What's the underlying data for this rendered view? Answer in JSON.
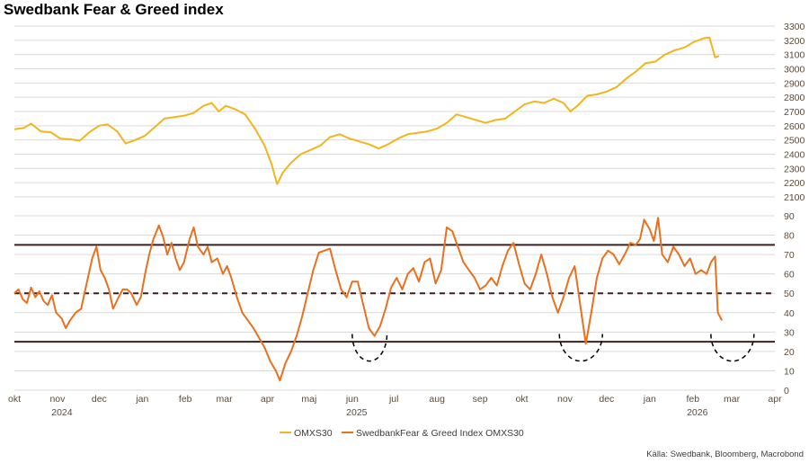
{
  "title": "Swedbank Fear & Greed index",
  "source": "Källa: Swedbank, Bloomberg, Macrobond",
  "colors": {
    "omx": "#f2b51c",
    "fg": "#e8701e",
    "ref": "#3d1f1f",
    "grid": "#d9d9d9",
    "arc": "#000000"
  },
  "chart_data": {
    "type": "line",
    "x_axis": {
      "type": "time",
      "month_labels": [
        "okt",
        "nov",
        "dec",
        "jan",
        "feb",
        "mar",
        "apr",
        "maj",
        "jun",
        "jul",
        "aug",
        "sep",
        "okt",
        "nov",
        "dec",
        "jan",
        "feb",
        "mar",
        "apr"
      ],
      "year_labels": [
        "2024",
        "2025",
        "2026"
      ]
    },
    "upper_panel": {
      "series": "OMXS30",
      "ylim": [
        2100,
        3300
      ],
      "ticks": [
        2100,
        2200,
        2300,
        2400,
        2500,
        2600,
        2700,
        2800,
        2900,
        3000,
        3100,
        3200,
        3300
      ]
    },
    "lower_panel": {
      "series": "SwedbankFear & Greed Index OMXS30",
      "ylim": [
        0,
        90
      ],
      "ticks": [
        0,
        10,
        20,
        30,
        40,
        50,
        60,
        70,
        80,
        90
      ],
      "reference_lines": [
        {
          "value": 75,
          "style": "solid"
        },
        {
          "value": 50,
          "style": "dashed"
        },
        {
          "value": 25,
          "style": "solid"
        }
      ]
    },
    "series": [
      {
        "name": "OMXS30",
        "points": [
          [
            "2024-10-01",
            2575
          ],
          [
            "2024-10-08",
            2585
          ],
          [
            "2024-10-13",
            2615
          ],
          [
            "2024-10-20",
            2560
          ],
          [
            "2024-10-27",
            2555
          ],
          [
            "2024-11-03",
            2510
          ],
          [
            "2024-11-10",
            2505
          ],
          [
            "2024-11-17",
            2495
          ],
          [
            "2024-11-24",
            2555
          ],
          [
            "2024-12-01",
            2600
          ],
          [
            "2024-12-07",
            2610
          ],
          [
            "2024-12-14",
            2560
          ],
          [
            "2024-12-20",
            2475
          ],
          [
            "2024-12-27",
            2500
          ],
          [
            "2025-01-03",
            2530
          ],
          [
            "2025-01-10",
            2590
          ],
          [
            "2025-01-17",
            2650
          ],
          [
            "2025-01-24",
            2660
          ],
          [
            "2025-01-31",
            2670
          ],
          [
            "2025-02-07",
            2690
          ],
          [
            "2025-02-14",
            2740
          ],
          [
            "2025-02-20",
            2760
          ],
          [
            "2025-02-25",
            2700
          ],
          [
            "2025-03-02",
            2740
          ],
          [
            "2025-03-09",
            2715
          ],
          [
            "2025-03-16",
            2680
          ],
          [
            "2025-03-23",
            2580
          ],
          [
            "2025-03-30",
            2460
          ],
          [
            "2025-04-04",
            2330
          ],
          [
            "2025-04-08",
            2190
          ],
          [
            "2025-04-12",
            2270
          ],
          [
            "2025-04-18",
            2340
          ],
          [
            "2025-04-25",
            2400
          ],
          [
            "2025-05-02",
            2430
          ],
          [
            "2025-05-09",
            2460
          ],
          [
            "2025-05-16",
            2520
          ],
          [
            "2025-05-23",
            2540
          ],
          [
            "2025-05-30",
            2510
          ],
          [
            "2025-06-06",
            2490
          ],
          [
            "2025-06-13",
            2470
          ],
          [
            "2025-06-20",
            2440
          ],
          [
            "2025-06-27",
            2470
          ],
          [
            "2025-07-04",
            2510
          ],
          [
            "2025-07-11",
            2540
          ],
          [
            "2025-07-18",
            2550
          ],
          [
            "2025-07-25",
            2560
          ],
          [
            "2025-08-01",
            2580
          ],
          [
            "2025-08-08",
            2620
          ],
          [
            "2025-08-15",
            2680
          ],
          [
            "2025-08-22",
            2660
          ],
          [
            "2025-08-29",
            2640
          ],
          [
            "2025-09-05",
            2620
          ],
          [
            "2025-09-12",
            2640
          ],
          [
            "2025-09-19",
            2650
          ],
          [
            "2025-09-26",
            2700
          ],
          [
            "2025-10-03",
            2750
          ],
          [
            "2025-10-10",
            2770
          ],
          [
            "2025-10-17",
            2760
          ],
          [
            "2025-10-24",
            2790
          ],
          [
            "2025-10-31",
            2760
          ],
          [
            "2025-11-05",
            2700
          ],
          [
            "2025-11-10",
            2740
          ],
          [
            "2025-11-17",
            2810
          ],
          [
            "2025-11-24",
            2820
          ],
          [
            "2025-12-01",
            2840
          ],
          [
            "2025-12-08",
            2870
          ],
          [
            "2025-12-15",
            2930
          ],
          [
            "2025-12-22",
            2980
          ],
          [
            "2025-12-29",
            3040
          ],
          [
            "2026-01-05",
            3050
          ],
          [
            "2026-01-12",
            3100
          ],
          [
            "2026-01-19",
            3130
          ],
          [
            "2026-01-26",
            3150
          ],
          [
            "2026-02-02",
            3190
          ],
          [
            "2026-02-09",
            3215
          ],
          [
            "2026-02-13",
            3220
          ],
          [
            "2026-02-17",
            3080
          ],
          [
            "2026-02-20",
            3090
          ]
        ]
      },
      {
        "name": "SwedbankFear & Greed Index OMXS30",
        "points": [
          [
            "2024-10-01",
            50
          ],
          [
            "2024-10-04",
            52
          ],
          [
            "2024-10-07",
            47
          ],
          [
            "2024-10-10",
            45
          ],
          [
            "2024-10-13",
            53
          ],
          [
            "2024-10-16",
            48
          ],
          [
            "2024-10-19",
            51
          ],
          [
            "2024-10-22",
            46
          ],
          [
            "2024-10-25",
            44
          ],
          [
            "2024-10-28",
            49
          ],
          [
            "2024-10-31",
            40
          ],
          [
            "2024-11-04",
            37
          ],
          [
            "2024-11-07",
            32
          ],
          [
            "2024-11-10",
            36
          ],
          [
            "2024-11-14",
            40
          ],
          [
            "2024-11-18",
            42
          ],
          [
            "2024-11-22",
            55
          ],
          [
            "2024-11-26",
            68
          ],
          [
            "2024-11-29",
            74
          ],
          [
            "2024-12-02",
            62
          ],
          [
            "2024-12-05",
            58
          ],
          [
            "2024-12-08",
            52
          ],
          [
            "2024-12-11",
            42
          ],
          [
            "2024-12-15",
            48
          ],
          [
            "2024-12-18",
            52
          ],
          [
            "2024-12-21",
            52
          ],
          [
            "2024-12-24",
            50
          ],
          [
            "2024-12-28",
            44
          ],
          [
            "2024-12-31",
            48
          ],
          [
            "2025-01-03",
            60
          ],
          [
            "2025-01-06",
            70
          ],
          [
            "2025-01-09",
            78
          ],
          [
            "2025-01-13",
            85
          ],
          [
            "2025-01-16",
            79
          ],
          [
            "2025-01-19",
            70
          ],
          [
            "2025-01-22",
            76
          ],
          [
            "2025-01-25",
            68
          ],
          [
            "2025-01-28",
            62
          ],
          [
            "2025-01-31",
            66
          ],
          [
            "2025-02-04",
            78
          ],
          [
            "2025-02-07",
            84
          ],
          [
            "2025-02-10",
            74
          ],
          [
            "2025-02-14",
            70
          ],
          [
            "2025-02-17",
            74
          ],
          [
            "2025-02-20",
            66
          ],
          [
            "2025-02-24",
            68
          ],
          [
            "2025-02-28",
            60
          ],
          [
            "2025-03-03",
            64
          ],
          [
            "2025-03-06",
            58
          ],
          [
            "2025-03-10",
            48
          ],
          [
            "2025-03-14",
            40
          ],
          [
            "2025-03-18",
            36
          ],
          [
            "2025-03-22",
            32
          ],
          [
            "2025-03-26",
            27
          ],
          [
            "2025-03-30",
            22
          ],
          [
            "2025-04-03",
            15
          ],
          [
            "2025-04-07",
            10
          ],
          [
            "2025-04-10",
            5
          ],
          [
            "2025-04-14",
            14
          ],
          [
            "2025-04-18",
            20
          ],
          [
            "2025-04-22",
            28
          ],
          [
            "2025-04-26",
            38
          ],
          [
            "2025-04-30",
            50
          ],
          [
            "2025-05-04",
            62
          ],
          [
            "2025-05-08",
            71
          ],
          [
            "2025-05-12",
            72
          ],
          [
            "2025-05-16",
            73
          ],
          [
            "2025-05-20",
            62
          ],
          [
            "2025-05-24",
            52
          ],
          [
            "2025-05-28",
            48
          ],
          [
            "2025-06-01",
            56
          ],
          [
            "2025-06-05",
            56
          ],
          [
            "2025-06-09",
            44
          ],
          [
            "2025-06-13",
            32
          ],
          [
            "2025-06-17",
            28
          ],
          [
            "2025-06-21",
            33
          ],
          [
            "2025-06-25",
            42
          ],
          [
            "2025-06-29",
            53
          ],
          [
            "2025-07-03",
            58
          ],
          [
            "2025-07-07",
            52
          ],
          [
            "2025-07-11",
            60
          ],
          [
            "2025-07-15",
            63
          ],
          [
            "2025-07-19",
            56
          ],
          [
            "2025-07-23",
            66
          ],
          [
            "2025-07-27",
            68
          ],
          [
            "2025-07-31",
            55
          ],
          [
            "2025-08-04",
            62
          ],
          [
            "2025-08-08",
            84
          ],
          [
            "2025-08-12",
            82
          ],
          [
            "2025-08-16",
            74
          ],
          [
            "2025-08-20",
            66
          ],
          [
            "2025-08-24",
            62
          ],
          [
            "2025-08-28",
            58
          ],
          [
            "2025-09-01",
            52
          ],
          [
            "2025-09-05",
            54
          ],
          [
            "2025-09-09",
            58
          ],
          [
            "2025-09-13",
            54
          ],
          [
            "2025-09-17",
            64
          ],
          [
            "2025-09-21",
            72
          ],
          [
            "2025-09-25",
            76
          ],
          [
            "2025-09-29",
            65
          ],
          [
            "2025-10-03",
            55
          ],
          [
            "2025-10-07",
            52
          ],
          [
            "2025-10-11",
            60
          ],
          [
            "2025-10-15",
            70
          ],
          [
            "2025-10-19",
            60
          ],
          [
            "2025-10-23",
            48
          ],
          [
            "2025-10-27",
            40
          ],
          [
            "2025-10-31",
            48
          ],
          [
            "2025-11-04",
            58
          ],
          [
            "2025-11-08",
            64
          ],
          [
            "2025-11-12",
            44
          ],
          [
            "2025-11-16",
            24
          ],
          [
            "2025-11-20",
            40
          ],
          [
            "2025-11-24",
            58
          ],
          [
            "2025-11-28",
            68
          ],
          [
            "2025-12-02",
            72
          ],
          [
            "2025-12-06",
            70
          ],
          [
            "2025-12-10",
            65
          ],
          [
            "2025-12-14",
            70
          ],
          [
            "2025-12-18",
            76
          ],
          [
            "2025-12-22",
            75
          ],
          [
            "2025-12-25",
            78
          ],
          [
            "2025-12-28",
            88
          ],
          [
            "2026-01-01",
            83
          ],
          [
            "2026-01-04",
            77
          ],
          [
            "2026-01-07",
            89
          ],
          [
            "2026-01-10",
            70
          ],
          [
            "2026-01-14",
            66
          ],
          [
            "2026-01-18",
            74
          ],
          [
            "2026-01-22",
            70
          ],
          [
            "2026-01-26",
            64
          ],
          [
            "2026-01-30",
            68
          ],
          [
            "2026-02-03",
            60
          ],
          [
            "2026-02-07",
            62
          ],
          [
            "2026-02-11",
            60
          ],
          [
            "2026-02-14",
            66
          ],
          [
            "2026-02-17",
            69
          ],
          [
            "2026-02-19",
            40
          ],
          [
            "2026-02-22",
            36
          ]
        ]
      }
    ],
    "legend": {
      "placement": "bottom-center",
      "entries": [
        "OMXS30",
        "SwedbankFear & Greed Index OMXS30"
      ]
    },
    "annotations": [
      {
        "shape": "dashed-half-circle",
        "from": "2025-06-01",
        "to": "2025-06-26",
        "y_range": [
          15,
          29
        ]
      },
      {
        "shape": "dashed-half-circle",
        "from": "2025-10-28",
        "to": "2025-11-28",
        "y_range": [
          15,
          29
        ]
      },
      {
        "shape": "dashed-half-circle",
        "from": "2026-02-14",
        "to": "2026-03-17",
        "y_range": [
          15,
          29
        ]
      }
    ]
  }
}
